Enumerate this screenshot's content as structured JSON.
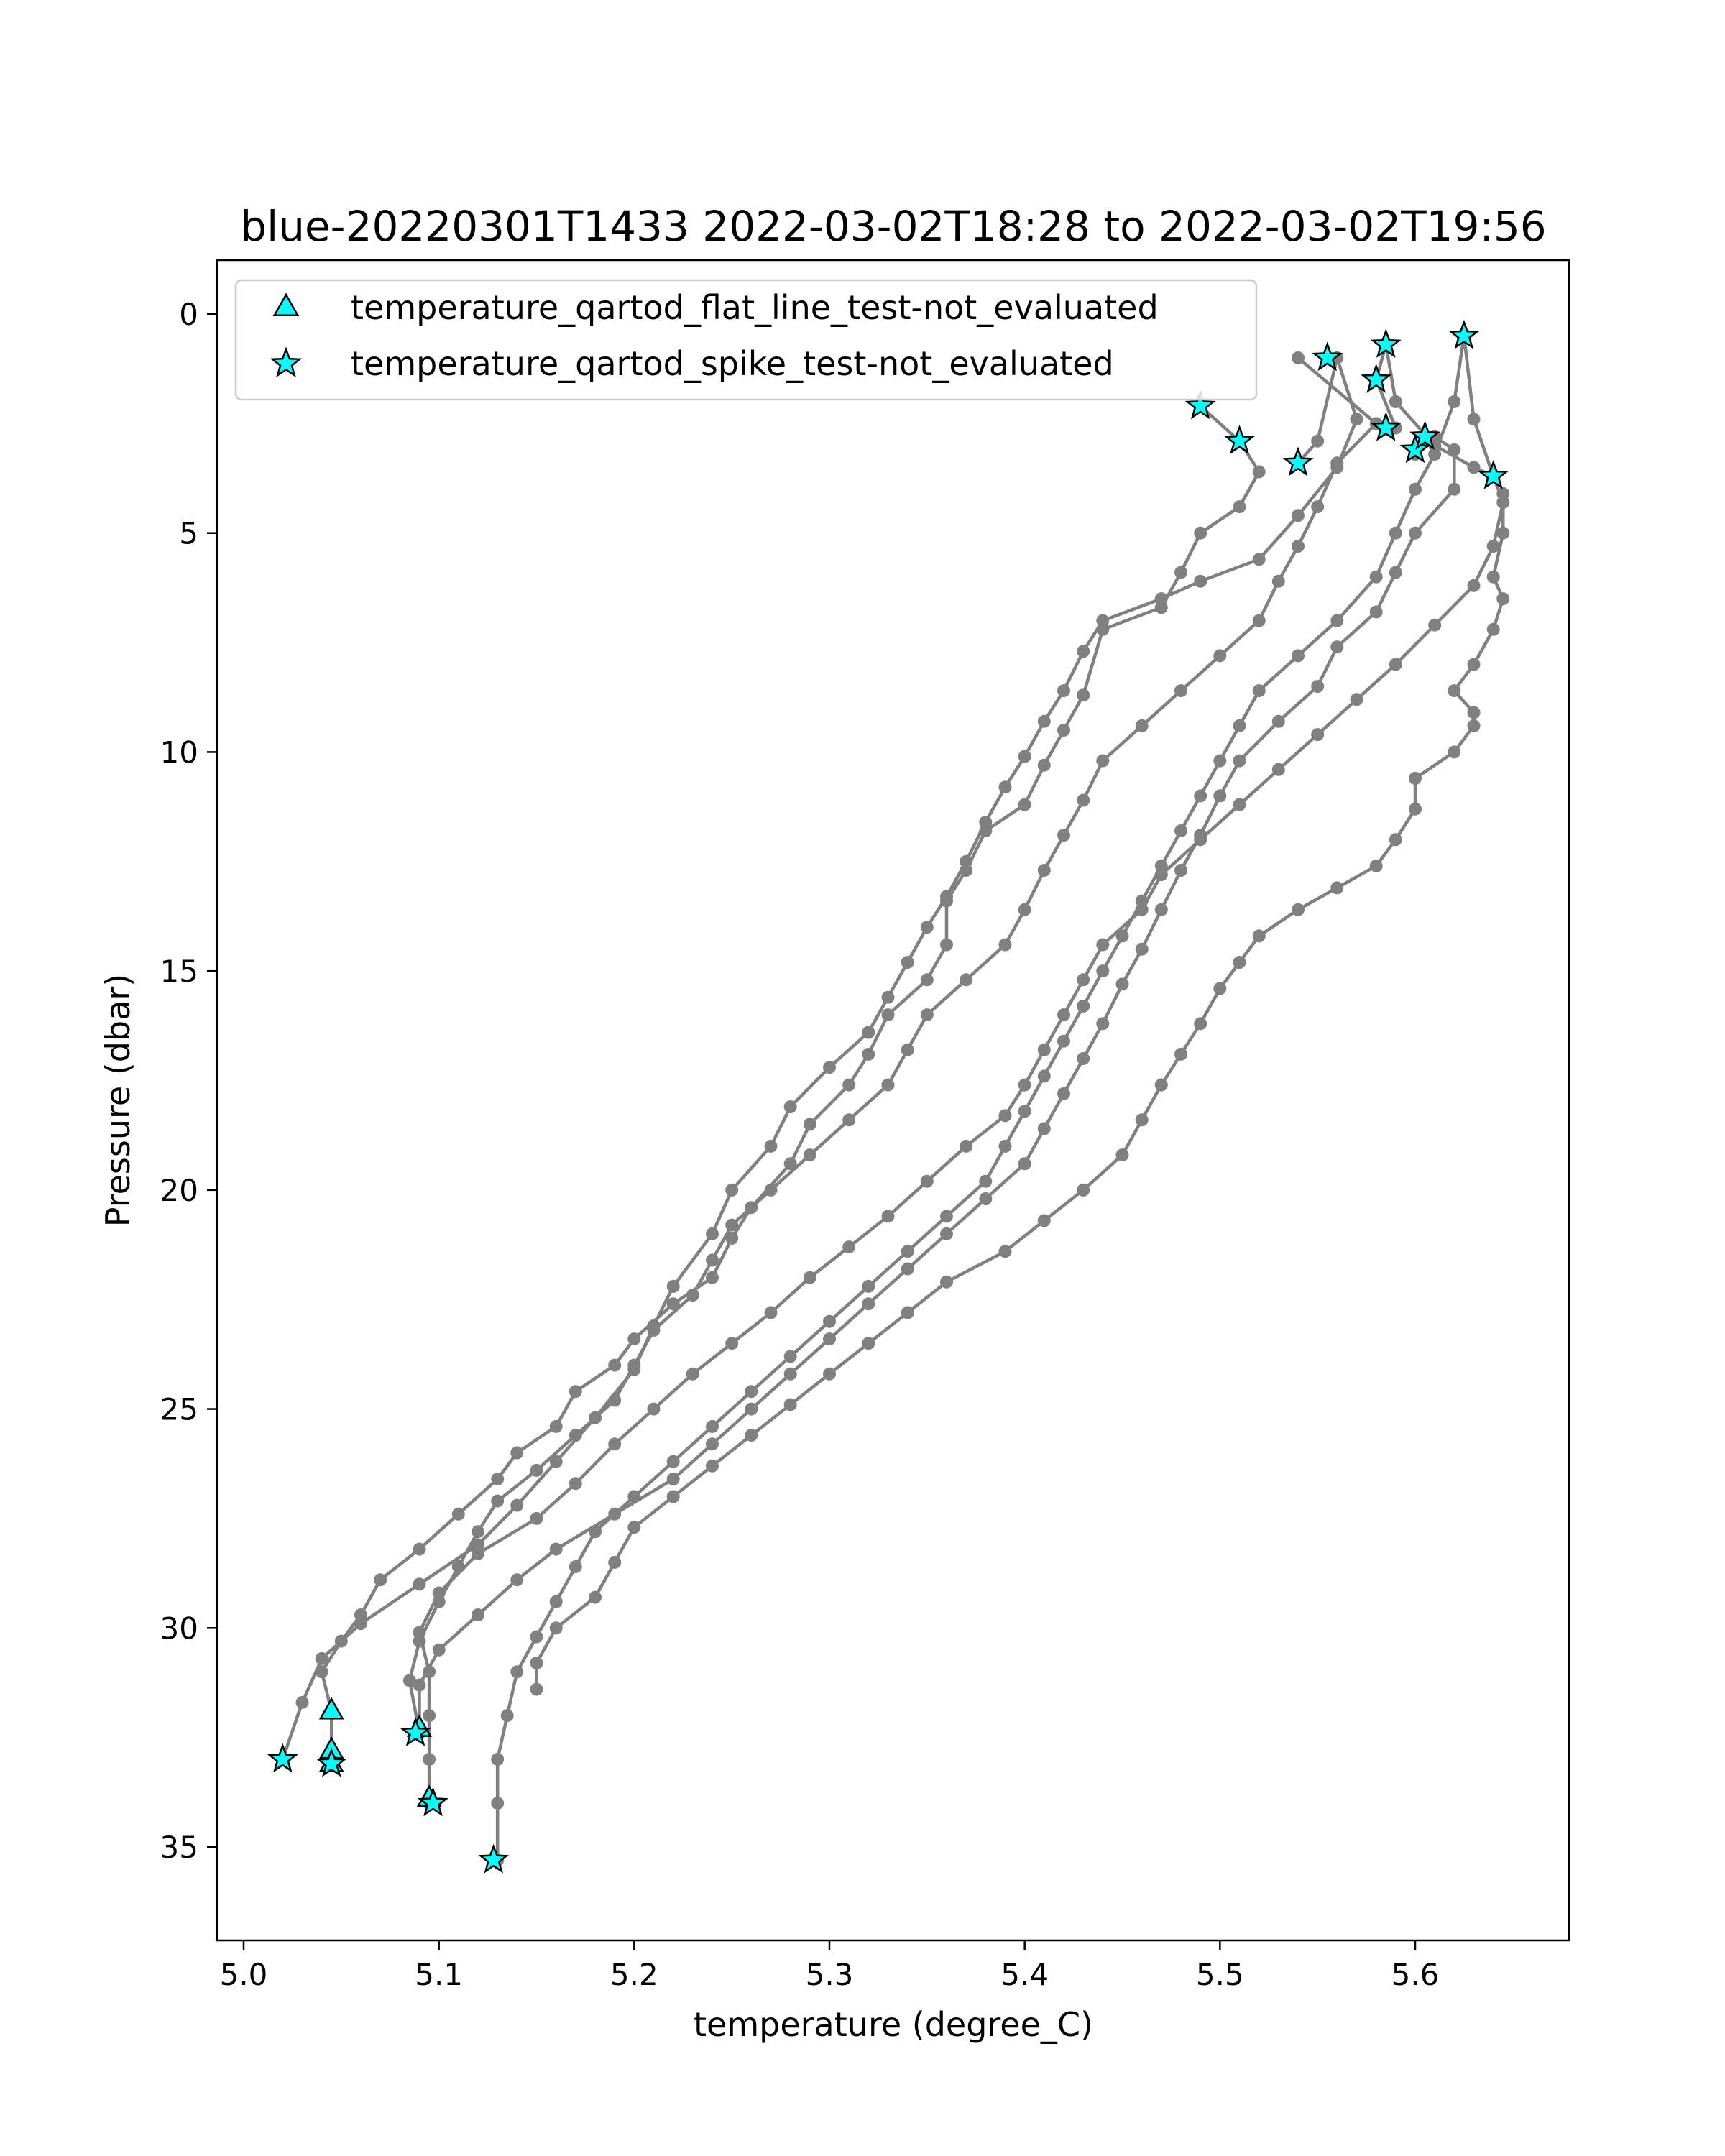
{
  "chart_data": {
    "type": "scatter",
    "title": "blue-20220301T1433 2022-03-02T18:28 to 2022-03-02T19:56",
    "xlabel": "temperature (degree_C)",
    "ylabel": "Pressure (dbar)",
    "xlim": [
      4.99,
      5.68
    ],
    "ylim": [
      37.0,
      -1.2
    ],
    "y_inverted": true,
    "grid": false,
    "legend_position": "top-left",
    "x_ticks": [
      5.0,
      5.1,
      5.2,
      5.3,
      5.4,
      5.5,
      5.6
    ],
    "x_tick_labels": [
      "5.0",
      "5.1",
      "5.2",
      "5.3",
      "5.4",
      "5.5",
      "5.6"
    ],
    "y_ticks": [
      0,
      5,
      10,
      15,
      20,
      25,
      30,
      35
    ],
    "y_tick_labels": [
      "0",
      "5",
      "10",
      "15",
      "20",
      "25",
      "30",
      "35"
    ],
    "line_color": "#808080",
    "marker_color": "#00ffff",
    "marker_edge_color": "#000000",
    "profiles": [
      [
        [
          5.49,
          2.1
        ],
        [
          5.51,
          2.9
        ],
        [
          5.52,
          3.6
        ],
        [
          5.51,
          4.4
        ],
        [
          5.49,
          5.0
        ],
        [
          5.48,
          5.9
        ],
        [
          5.47,
          6.7
        ],
        [
          5.44,
          7.2
        ],
        [
          5.43,
          8.7
        ],
        [
          5.42,
          9.5
        ],
        [
          5.41,
          10.3
        ],
        [
          5.4,
          11.2
        ],
        [
          5.38,
          11.8
        ],
        [
          5.37,
          12.7
        ],
        [
          5.36,
          13.4
        ],
        [
          5.36,
          14.4
        ],
        [
          5.35,
          15.2
        ],
        [
          5.33,
          16.0
        ],
        [
          5.32,
          16.9
        ],
        [
          5.31,
          17.6
        ],
        [
          5.29,
          18.5
        ],
        [
          5.28,
          19.4
        ],
        [
          5.26,
          20.4
        ],
        [
          5.25,
          21.1
        ],
        [
          5.24,
          22.0
        ],
        [
          5.22,
          22.6
        ],
        [
          5.2,
          23.4
        ],
        [
          5.19,
          24.0
        ],
        [
          5.17,
          24.6
        ],
        [
          5.16,
          25.4
        ],
        [
          5.14,
          26.0
        ],
        [
          5.13,
          26.6
        ],
        [
          5.11,
          27.4
        ],
        [
          5.09,
          28.2
        ],
        [
          5.07,
          28.9
        ],
        [
          5.06,
          29.7
        ],
        [
          5.05,
          30.3
        ],
        [
          5.04,
          31.0
        ],
        [
          5.045,
          31.9
        ],
        [
          5.045,
          32.8
        ],
        [
          5.045,
          33.1
        ]
      ],
      [
        [
          5.54,
          3.4
        ],
        [
          5.55,
          2.9
        ],
        [
          5.56,
          1.0
        ],
        [
          5.57,
          2.4
        ],
        [
          5.56,
          3.5
        ],
        [
          5.54,
          4.6
        ],
        [
          5.52,
          5.6
        ],
        [
          5.49,
          6.1
        ],
        [
          5.47,
          6.5
        ],
        [
          5.44,
          7.0
        ],
        [
          5.43,
          7.7
        ],
        [
          5.42,
          8.6
        ],
        [
          5.41,
          9.3
        ],
        [
          5.4,
          10.1
        ],
        [
          5.39,
          10.8
        ],
        [
          5.38,
          11.6
        ],
        [
          5.37,
          12.5
        ],
        [
          5.36,
          13.3
        ],
        [
          5.35,
          14.0
        ],
        [
          5.34,
          14.8
        ],
        [
          5.33,
          15.6
        ],
        [
          5.32,
          16.4
        ],
        [
          5.3,
          17.2
        ],
        [
          5.28,
          18.1
        ],
        [
          5.27,
          19.0
        ],
        [
          5.25,
          20.0
        ],
        [
          5.24,
          21.0
        ],
        [
          5.22,
          22.2
        ],
        [
          5.21,
          23.1
        ],
        [
          5.2,
          24.1
        ],
        [
          5.18,
          25.2
        ],
        [
          5.16,
          26.2
        ],
        [
          5.14,
          27.2
        ],
        [
          5.12,
          28.1
        ],
        [
          5.09,
          29.0
        ],
        [
          5.06,
          29.9
        ],
        [
          5.04,
          30.7
        ],
        [
          5.03,
          31.7
        ],
        [
          5.02,
          33.0
        ]
      ],
      [
        [
          5.59,
          2.6
        ],
        [
          5.58,
          1.5
        ],
        [
          5.585,
          0.7
        ],
        [
          5.59,
          2.0
        ],
        [
          5.61,
          3.0
        ],
        [
          5.63,
          3.5
        ],
        [
          5.64,
          3.7
        ],
        [
          5.645,
          4.3
        ],
        [
          5.64,
          5.3
        ],
        [
          5.63,
          6.2
        ],
        [
          5.61,
          7.1
        ],
        [
          5.59,
          8.0
        ],
        [
          5.57,
          8.8
        ],
        [
          5.55,
          9.6
        ],
        [
          5.53,
          10.4
        ],
        [
          5.51,
          11.2
        ],
        [
          5.49,
          12.0
        ],
        [
          5.47,
          12.8
        ],
        [
          5.46,
          13.6
        ],
        [
          5.44,
          14.4
        ],
        [
          5.43,
          15.2
        ],
        [
          5.42,
          16.0
        ],
        [
          5.41,
          16.8
        ],
        [
          5.4,
          17.6
        ],
        [
          5.39,
          18.3
        ],
        [
          5.37,
          19.0
        ],
        [
          5.35,
          19.8
        ],
        [
          5.33,
          20.6
        ],
        [
          5.31,
          21.3
        ],
        [
          5.29,
          22.0
        ],
        [
          5.27,
          22.8
        ],
        [
          5.25,
          23.5
        ],
        [
          5.23,
          24.2
        ],
        [
          5.21,
          25.0
        ],
        [
          5.19,
          25.8
        ],
        [
          5.17,
          26.7
        ],
        [
          5.15,
          27.5
        ],
        [
          5.12,
          28.3
        ],
        [
          5.1,
          29.2
        ],
        [
          5.09,
          30.1
        ],
        [
          5.095,
          31.0
        ],
        [
          5.095,
          32.0
        ],
        [
          5.095,
          33.0
        ],
        [
          5.095,
          34.0
        ]
      ],
      [
        [
          5.6,
          3.2
        ],
        [
          5.61,
          2.8
        ],
        [
          5.62,
          3.1
        ],
        [
          5.62,
          4.0
        ],
        [
          5.6,
          5.0
        ],
        [
          5.59,
          5.9
        ],
        [
          5.58,
          6.8
        ],
        [
          5.56,
          7.6
        ],
        [
          5.55,
          8.5
        ],
        [
          5.53,
          9.3
        ],
        [
          5.51,
          10.2
        ],
        [
          5.5,
          11.0
        ],
        [
          5.49,
          11.9
        ],
        [
          5.48,
          12.7
        ],
        [
          5.47,
          13.6
        ],
        [
          5.46,
          14.5
        ],
        [
          5.45,
          15.3
        ],
        [
          5.44,
          16.2
        ],
        [
          5.43,
          17.0
        ],
        [
          5.42,
          17.8
        ],
        [
          5.41,
          18.6
        ],
        [
          5.4,
          19.4
        ],
        [
          5.38,
          20.2
        ],
        [
          5.36,
          21.0
        ],
        [
          5.34,
          21.8
        ],
        [
          5.32,
          22.6
        ],
        [
          5.3,
          23.4
        ],
        [
          5.28,
          24.2
        ],
        [
          5.26,
          25.0
        ],
        [
          5.24,
          25.8
        ],
        [
          5.22,
          26.6
        ],
        [
          5.19,
          27.4
        ],
        [
          5.16,
          28.2
        ],
        [
          5.14,
          28.9
        ],
        [
          5.12,
          29.7
        ],
        [
          5.1,
          30.5
        ],
        [
          5.09,
          31.3
        ],
        [
          5.09,
          32.3
        ]
      ],
      [
        [
          5.64,
          3.7
        ],
        [
          5.63,
          2.4
        ],
        [
          5.625,
          0.5
        ],
        [
          5.62,
          2.0
        ],
        [
          5.61,
          3.2
        ],
        [
          5.6,
          4.0
        ],
        [
          5.59,
          5.0
        ],
        [
          5.58,
          6.0
        ],
        [
          5.56,
          7.0
        ],
        [
          5.54,
          7.8
        ],
        [
          5.52,
          8.6
        ],
        [
          5.51,
          9.4
        ],
        [
          5.5,
          10.2
        ],
        [
          5.49,
          11.0
        ],
        [
          5.48,
          11.8
        ],
        [
          5.47,
          12.6
        ],
        [
          5.46,
          13.4
        ],
        [
          5.45,
          14.2
        ],
        [
          5.44,
          15.0
        ],
        [
          5.43,
          15.8
        ],
        [
          5.42,
          16.6
        ],
        [
          5.41,
          17.4
        ],
        [
          5.4,
          18.2
        ],
        [
          5.39,
          19.0
        ],
        [
          5.38,
          19.8
        ],
        [
          5.36,
          20.6
        ],
        [
          5.34,
          21.4
        ],
        [
          5.32,
          22.2
        ],
        [
          5.3,
          23.0
        ],
        [
          5.28,
          23.8
        ],
        [
          5.26,
          24.6
        ],
        [
          5.24,
          25.4
        ],
        [
          5.22,
          26.2
        ],
        [
          5.2,
          27.0
        ],
        [
          5.18,
          27.8
        ],
        [
          5.17,
          28.6
        ],
        [
          5.16,
          29.4
        ],
        [
          5.15,
          30.2
        ],
        [
          5.14,
          31.0
        ],
        [
          5.135,
          32.0
        ],
        [
          5.13,
          33.0
        ],
        [
          5.13,
          34.0
        ],
        [
          5.13,
          35.3
        ]
      ],
      [
        [
          5.645,
          4.1
        ],
        [
          5.645,
          5.0
        ],
        [
          5.64,
          6.0
        ],
        [
          5.645,
          6.5
        ],
        [
          5.64,
          7.2
        ],
        [
          5.63,
          8.0
        ],
        [
          5.62,
          8.6
        ],
        [
          5.63,
          9.1
        ],
        [
          5.63,
          9.4
        ],
        [
          5.62,
          10.0
        ],
        [
          5.6,
          10.6
        ],
        [
          5.6,
          11.3
        ],
        [
          5.59,
          12.0
        ],
        [
          5.58,
          12.6
        ],
        [
          5.56,
          13.1
        ],
        [
          5.54,
          13.6
        ],
        [
          5.52,
          14.2
        ],
        [
          5.51,
          14.8
        ],
        [
          5.5,
          15.4
        ],
        [
          5.49,
          16.2
        ],
        [
          5.48,
          16.9
        ],
        [
          5.47,
          17.6
        ],
        [
          5.46,
          18.4
        ],
        [
          5.45,
          19.2
        ],
        [
          5.43,
          20.0
        ],
        [
          5.41,
          20.7
        ],
        [
          5.39,
          21.4
        ],
        [
          5.36,
          22.1
        ],
        [
          5.34,
          22.8
        ],
        [
          5.32,
          23.5
        ],
        [
          5.3,
          24.2
        ],
        [
          5.28,
          24.9
        ],
        [
          5.26,
          25.6
        ],
        [
          5.24,
          26.3
        ],
        [
          5.22,
          27.0
        ],
        [
          5.2,
          27.7
        ],
        [
          5.19,
          28.5
        ],
        [
          5.18,
          29.3
        ],
        [
          5.16,
          30.0
        ],
        [
          5.15,
          30.8
        ],
        [
          5.15,
          31.4
        ]
      ],
      [
        [
          5.54,
          1.0
        ],
        [
          5.58,
          2.5
        ],
        [
          5.56,
          3.4
        ],
        [
          5.55,
          4.4
        ],
        [
          5.54,
          5.3
        ],
        [
          5.53,
          6.1
        ],
        [
          5.52,
          7.0
        ],
        [
          5.5,
          7.8
        ],
        [
          5.48,
          8.6
        ],
        [
          5.46,
          9.4
        ],
        [
          5.44,
          10.2
        ],
        [
          5.43,
          11.1
        ],
        [
          5.42,
          11.9
        ],
        [
          5.41,
          12.7
        ],
        [
          5.4,
          13.6
        ],
        [
          5.39,
          14.4
        ],
        [
          5.37,
          15.2
        ],
        [
          5.35,
          16.0
        ],
        [
          5.34,
          16.8
        ],
        [
          5.33,
          17.6
        ],
        [
          5.31,
          18.4
        ],
        [
          5.29,
          19.2
        ],
        [
          5.27,
          20.0
        ],
        [
          5.25,
          20.8
        ],
        [
          5.24,
          21.6
        ],
        [
          5.23,
          22.4
        ],
        [
          5.21,
          23.2
        ],
        [
          5.2,
          24.0
        ],
        [
          5.19,
          24.8
        ],
        [
          5.17,
          25.6
        ],
        [
          5.15,
          26.4
        ],
        [
          5.13,
          27.1
        ],
        [
          5.12,
          27.8
        ],
        [
          5.11,
          28.6
        ],
        [
          5.1,
          29.4
        ],
        [
          5.09,
          30.3
        ],
        [
          5.085,
          31.2
        ],
        [
          5.09,
          32.4
        ]
      ]
    ],
    "series": [
      {
        "name": "temperature_qartod_flat_line_test-not_evaluated",
        "marker": "triangle",
        "points": [
          [
            5.045,
            31.9
          ],
          [
            5.045,
            32.8
          ],
          [
            5.045,
            33.1
          ],
          [
            5.09,
            32.3
          ],
          [
            5.095,
            33.9
          ]
        ]
      },
      {
        "name": "temperature_qartod_spike_test-not_evaluated",
        "marker": "star",
        "points": [
          [
            5.49,
            2.1
          ],
          [
            5.51,
            2.9
          ],
          [
            5.54,
            3.4
          ],
          [
            5.555,
            1.0
          ],
          [
            5.58,
            1.5
          ],
          [
            5.585,
            0.7
          ],
          [
            5.585,
            2.6
          ],
          [
            5.6,
            3.1
          ],
          [
            5.605,
            2.8
          ],
          [
            5.625,
            0.5
          ],
          [
            5.64,
            3.7
          ],
          [
            5.02,
            33.0
          ],
          [
            5.045,
            33.1
          ],
          [
            5.088,
            32.4
          ],
          [
            5.097,
            34.0
          ],
          [
            5.128,
            35.3
          ]
        ]
      }
    ]
  }
}
